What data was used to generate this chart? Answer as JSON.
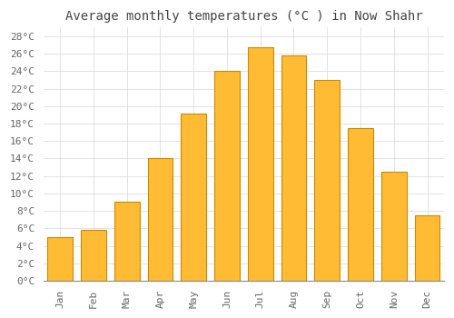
{
  "title": "Average monthly temperatures (°C ) in Now Shahr",
  "months": [
    "Jan",
    "Feb",
    "Mar",
    "Apr",
    "May",
    "Jun",
    "Jul",
    "Aug",
    "Sep",
    "Oct",
    "Nov",
    "Dec"
  ],
  "values": [
    5.0,
    5.8,
    9.0,
    14.0,
    19.2,
    24.0,
    26.8,
    25.8,
    23.0,
    17.5,
    12.5,
    7.5
  ],
  "bar_color": "#FFBB33",
  "bar_edge_color": "#CC8800",
  "background_color": "#FFFFFF",
  "plot_bg_color": "#FFFFFF",
  "grid_color": "#DDDDDD",
  "ylim": [
    0,
    29
  ],
  "yticks": [
    0,
    2,
    4,
    6,
    8,
    10,
    12,
    14,
    16,
    18,
    20,
    22,
    24,
    26,
    28
  ],
  "ytick_labels": [
    "0°C",
    "2°C",
    "4°C",
    "6°C",
    "8°C",
    "10°C",
    "12°C",
    "14°C",
    "16°C",
    "18°C",
    "20°C",
    "22°C",
    "24°C",
    "26°C",
    "28°C"
  ],
  "title_fontsize": 10,
  "tick_fontsize": 8,
  "title_color": "#444444",
  "tick_color": "#666666",
  "bar_width": 0.75
}
